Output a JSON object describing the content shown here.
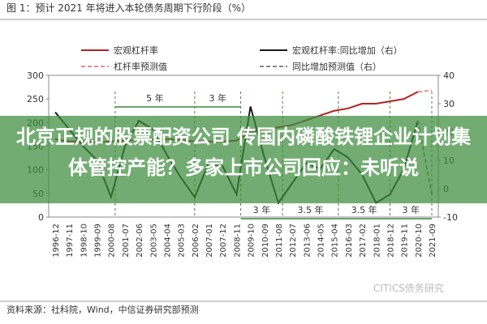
{
  "chart_data": {
    "type": "line",
    "title": "图 1：预计 2021 年将进入本轮债务周期下行阶段（%）",
    "source": "资料来源：社科院，Wind，中信证券研究部预测",
    "watermark": "CITICS债务研究",
    "banner": "北京正规的股票配资公司 传国内磷酸铁锂企业计划集体管控产能？多家上市公司回应：未听说",
    "categories": [
      "1996-12",
      "1997-11",
      "1998-10",
      "1999-09",
      "2000-08",
      "2001-07",
      "2002-06",
      "2003-05",
      "2004-04",
      "2005-03",
      "2006-02",
      "2007-01",
      "2007-12",
      "2008-11",
      "2009-10",
      "2010-09",
      "2011-08",
      "2012-07",
      "2013-06",
      "2014-05",
      "2015-04",
      "2016-03",
      "2017-02",
      "2018-01",
      "2018-12",
      "2019-11",
      "2020-10",
      "2021-09"
    ],
    "series": [
      {
        "name": "宏观杠杆率",
        "color": "#b22222",
        "values": [
          165,
          160,
          160,
          158,
          160,
          162,
          163,
          164,
          165,
          163,
          160,
          160,
          160,
          162,
          180,
          185,
          190,
          195,
          205,
          215,
          225,
          230,
          240,
          240,
          245,
          250,
          265,
          null
        ]
      },
      {
        "name": "杠杆率预测值",
        "color": "#e88a94",
        "dash": true,
        "values": [
          null,
          null,
          null,
          null,
          null,
          null,
          null,
          null,
          null,
          null,
          null,
          null,
          null,
          null,
          null,
          null,
          null,
          null,
          null,
          null,
          null,
          null,
          null,
          null,
          null,
          null,
          265,
          268
        ]
      },
      {
        "name": "宏观杠杆率:同比增加（右）",
        "color": "#1a1a1a",
        "axis": "y2",
        "values": [
          27,
          21,
          15,
          10,
          -3,
          15,
          24,
          21,
          12,
          4,
          -3,
          9,
          8,
          -2,
          29,
          11,
          -5,
          2,
          9,
          7,
          14,
          11,
          5,
          -5,
          -2,
          7,
          24,
          null
        ]
      },
      {
        "name": "同比增加预测值（右）",
        "color": "#888888",
        "dash": true,
        "axis": "y2",
        "values": [
          null,
          null,
          null,
          null,
          null,
          null,
          null,
          null,
          null,
          null,
          null,
          null,
          null,
          null,
          null,
          null,
          null,
          null,
          null,
          null,
          null,
          null,
          null,
          null,
          null,
          null,
          24,
          -2
        ]
      }
    ],
    "ylim": [
      0,
      300
    ],
    "yticks": [
      0,
      50,
      100,
      150,
      200,
      250,
      300
    ],
    "y2lim": [
      -10,
      40
    ],
    "y2ticks": [
      -10,
      0,
      10,
      20,
      30,
      40
    ],
    "annotations": [
      "5 年",
      "3 年",
      "3 年",
      "3.5 年",
      "3.5 年",
      "3 年"
    ]
  }
}
